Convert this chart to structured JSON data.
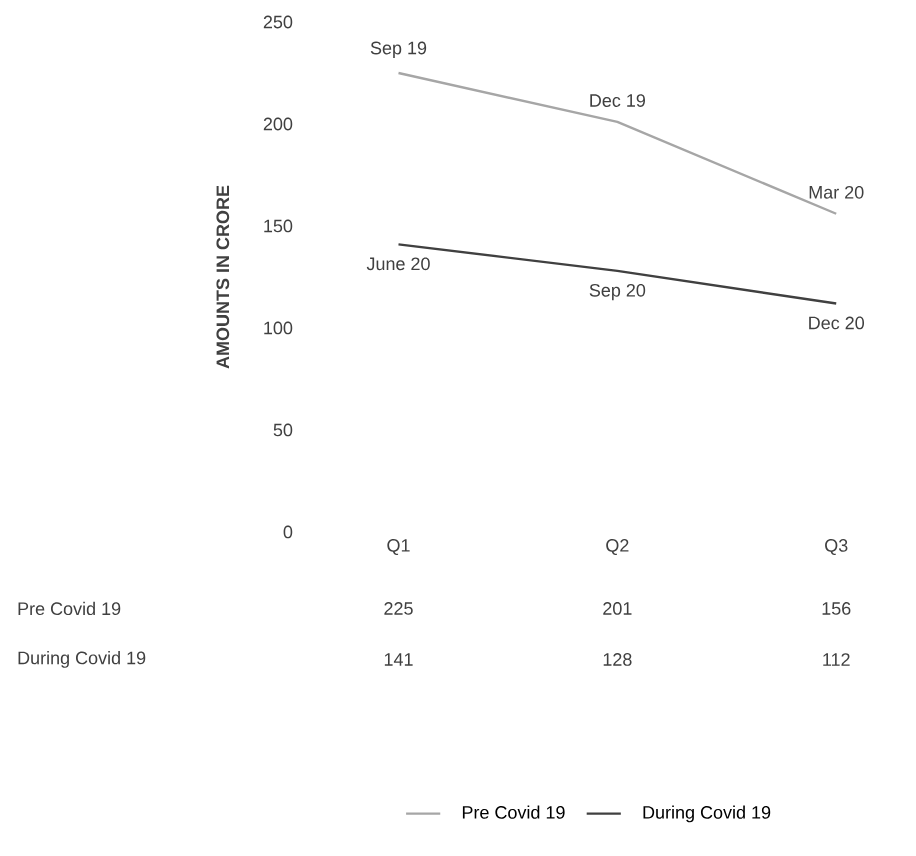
{
  "chart_data": {
    "type": "line",
    "ylabel": "AMOUNTS IN CRORE",
    "categories": [
      "Q1",
      "Q2",
      "Q3"
    ],
    "series": [
      {
        "name": "Pre Covid 19",
        "color": "#a6a6a6",
        "values": [
          225,
          201,
          156
        ]
      },
      {
        "name": "During Covid 19",
        "color": "#404040",
        "values": [
          141,
          128,
          112
        ]
      }
    ],
    "annotations": [
      {
        "text": "Sep 19",
        "x": "Q1",
        "y": 225
      },
      {
        "text": "Dec 19",
        "x": "Q2",
        "y": 201
      },
      {
        "text": "Mar 20",
        "x": "Q3",
        "y": 156
      },
      {
        "text": "June 20",
        "x": "Q1",
        "y": 141
      },
      {
        "text": "Sep 20",
        "x": "Q2",
        "y": 128
      },
      {
        "text": "Dec 20",
        "x": "Q3",
        "y": 112
      }
    ],
    "ylim": [
      0,
      250
    ],
    "yticks": [
      0,
      50,
      100,
      150,
      200,
      250
    ],
    "data_labels": true,
    "legend": "bottom",
    "grid": false,
    "marker": "none",
    "line_style": "solid"
  }
}
